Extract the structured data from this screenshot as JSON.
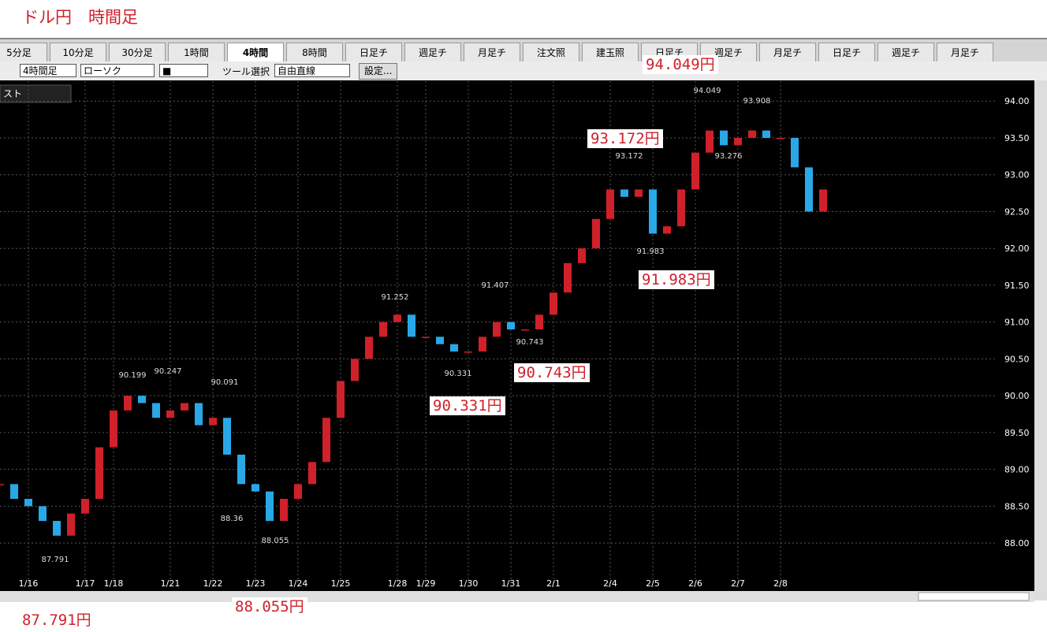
{
  "header": {
    "title": "ドル円　時間足"
  },
  "tabs": [
    "5分足",
    "10分足",
    "30分足",
    "1時間",
    "4時間",
    "8時間",
    "日足チ",
    "週足チ",
    "月足チ",
    "注文照",
    "建玉照",
    "日足チ",
    "週足チ",
    "月足チ",
    "日足チ",
    "週足チ",
    "月足チ"
  ],
  "toolbar": {
    "period": "4時間足",
    "style": "ローソク",
    "marker": "■",
    "tool_label": "ツール選択",
    "tool": "自由直線",
    "settings": "設定..."
  },
  "panel": {
    "label": "スト"
  },
  "chart_data": {
    "type": "candlestick",
    "categories": [
      null,
      null,
      "1/16",
      null,
      null,
      null,
      "1/17",
      null,
      "1/18",
      null,
      null,
      null,
      "1/21",
      null,
      null,
      "1/22",
      null,
      null,
      "1/23",
      null,
      null,
      "1/24",
      null,
      null,
      "1/25",
      null,
      null,
      null,
      "1/28",
      null,
      "1/29",
      null,
      null,
      "1/30",
      null,
      null,
      "1/31",
      null,
      null,
      "2/1",
      null,
      null,
      null,
      "2/4",
      null,
      null,
      "2/5",
      null,
      null,
      "2/6",
      null,
      null,
      "2/7",
      null,
      null,
      "2/8",
      null,
      null,
      null
    ],
    "values": [
      88.8,
      88.6,
      88.5,
      88.3,
      88.1,
      88.4,
      88.6,
      89.3,
      89.8,
      90.0,
      89.9,
      89.7,
      89.8,
      89.9,
      89.6,
      89.7,
      89.2,
      88.8,
      88.7,
      88.3,
      88.6,
      88.8,
      89.1,
      89.7,
      90.2,
      90.5,
      90.8,
      91.0,
      91.1,
      90.8,
      90.8,
      90.7,
      90.6,
      90.6,
      90.8,
      91.0,
      90.9,
      90.9,
      91.1,
      91.4,
      91.8,
      92.0,
      92.4,
      92.8,
      92.7,
      92.8,
      92.2,
      92.3,
      92.8,
      93.3,
      93.6,
      93.4,
      93.5,
      93.6,
      93.5,
      93.5,
      93.1,
      92.5,
      92.8
    ],
    "up_color": "#d0202a",
    "down_color": "#29a8e8",
    "ylim": [
      87.37,
      94.27
    ],
    "yticks": [
      {
        "value": 88,
        "label": "88.00"
      },
      {
        "value": 88.5,
        "label": "88.50"
      },
      {
        "value": 89,
        "label": "89.00"
      },
      {
        "value": 89.5,
        "label": "89.50"
      },
      {
        "value": 90,
        "label": "90.00"
      },
      {
        "value": 90.5,
        "label": "90.50"
      },
      {
        "value": 91,
        "label": "91.00"
      },
      {
        "value": 91.5,
        "label": "91.50"
      },
      {
        "value": 92,
        "label": "92.00"
      },
      {
        "value": 92.5,
        "label": "92.50"
      },
      {
        "value": 93,
        "label": "93.00"
      },
      {
        "value": 93.5,
        "label": "93.50"
      },
      {
        "value": 94,
        "label": "94.00"
      }
    ],
    "grid": true,
    "price_labels": [
      94.049,
      93.908,
      93.276,
      93.172,
      91.983,
      91.407,
      91.252,
      90.743,
      90.331,
      90.199,
      90.247,
      90.091,
      88.36,
      88.055,
      87.791
    ],
    "callouts": [
      "94.049円",
      "93.172円",
      "91.983円",
      "90.743円",
      "90.331円",
      "87.791円",
      "88.055円"
    ]
  }
}
